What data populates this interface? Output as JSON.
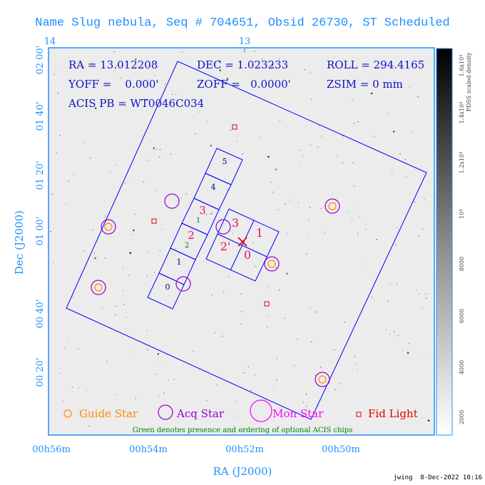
{
  "title": "Name Slug nebula, Seq # 704651, Obsid 26730, ST Scheduled",
  "top_ticks": [
    "14",
    "13"
  ],
  "dec_ticks": [
    "02 00'",
    "01 40'",
    "01 20'",
    "01 00'",
    "00 40'",
    "00 20'"
  ],
  "ra_ticks": [
    "00h56m",
    "00h54m",
    "00h52m",
    "00h50m"
  ],
  "x_axis_label": "RA (J2000)",
  "y_axis_label": "Dec (J2000)",
  "params": {
    "ra": "RA = 13.012208",
    "dec": "DEC = 1.023233",
    "roll": "ROLL = 294.4165",
    "yoff": "YOFF =    0.000'",
    "zoff": "ZOFF =   0.0000'",
    "zsim": "ZSIM = 0 mm",
    "acis_pb": "ACIS PB = WT0046C034"
  },
  "colorbar": {
    "label": "PDSS scaled density",
    "ticks": [
      "1.6x10⁴",
      "1.4x10⁴",
      "1.2x10⁴",
      "10⁴",
      "8000",
      "6000",
      "4000",
      "2000"
    ]
  },
  "chips": {
    "s_array": [
      "5",
      "4",
      "3",
      "2",
      "1",
      "0"
    ],
    "optional": [
      "1",
      "2"
    ],
    "i_array": [
      "3",
      "1",
      "2'",
      "0"
    ]
  },
  "legend": {
    "guide": "Guide Star",
    "acq": "Acq Star",
    "mon": "Mon Star",
    "fid": "Fid Light",
    "note": "Green denotes presence and ordering of optional ACIS chips"
  },
  "footer": "jwing  8-Dec-2022 10:16",
  "colors": {
    "axis": "#1e90ff",
    "guide": "#ff8c00",
    "acq": "#9400d3",
    "mon": "#ff00ff",
    "fid": "#e00000",
    "footprint": "#0000ff",
    "chip_label": "#000080",
    "i_label": "#e0106a",
    "optional": "#008000",
    "background": "#ececec"
  }
}
